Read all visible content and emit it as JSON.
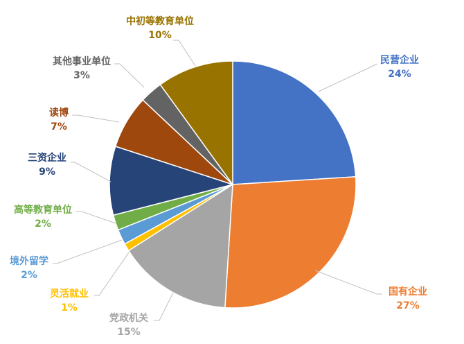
{
  "chart_data": {
    "type": "pie",
    "title": "",
    "start_angle": "top",
    "direction": "clockwise",
    "slices": [
      {
        "label": "民营企业",
        "value": 24,
        "value_label": "24%",
        "color": "#4472C4"
      },
      {
        "label": "国有企业",
        "value": 27,
        "value_label": "27%",
        "color": "#ED7D31"
      },
      {
        "label": "党政机关",
        "value": 15,
        "value_label": "15%",
        "color": "#A5A5A5"
      },
      {
        "label": "灵活就业",
        "value": 1,
        "value_label": "1%",
        "color": "#FFC000"
      },
      {
        "label": "境外留学",
        "value": 2,
        "value_label": "2%",
        "color": "#5B9BD5"
      },
      {
        "label": "高等教育单位",
        "value": 2,
        "value_label": "2%",
        "color": "#70AD47"
      },
      {
        "label": "三资企业",
        "value": 9,
        "value_label": "9%",
        "color": "#264478"
      },
      {
        "label": "读博",
        "value": 7,
        "value_label": "7%",
        "color": "#9E480E"
      },
      {
        "label": "其他事业单位",
        "value": 3,
        "value_label": "3%",
        "color": "#636363"
      },
      {
        "label": "中初等教育单位",
        "value": 10,
        "value_label": "10%",
        "color": "#997300"
      }
    ],
    "legend": "none"
  }
}
